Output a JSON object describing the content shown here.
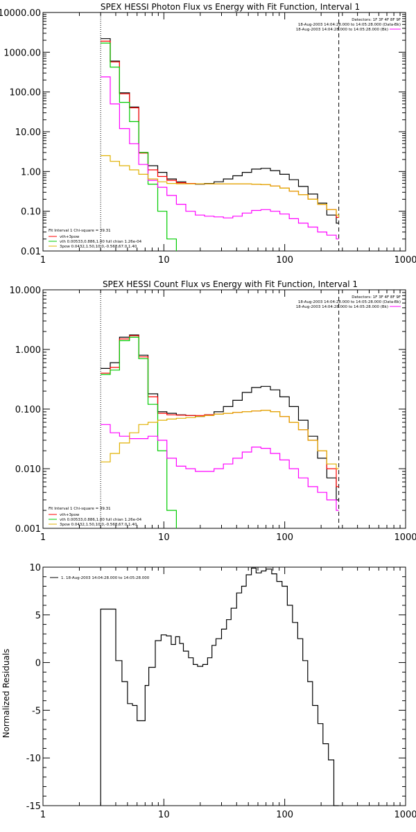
{
  "chart_data": [
    {
      "type": "line",
      "title": "SPEX HESSI Photon Flux vs Energy with Fit Function, Interval 1",
      "x_scale": "log",
      "y_scale": "log",
      "xlim": [
        1,
        1000
      ],
      "ylim": [
        0.01,
        10000
      ],
      "x_ticks": [
        "1",
        "10",
        "100",
        "1000"
      ],
      "y_ticks": [
        "0.01",
        "0.10",
        "1.00",
        "10.00",
        "100.00",
        "1000.00",
        "10000.00"
      ],
      "y_tick_values": [
        0.01,
        0.1,
        1,
        10,
        100,
        1000,
        10000
      ],
      "vlines": [
        {
          "x": 3,
          "style": "dotted"
        },
        {
          "x": 280,
          "style": "dashed"
        }
      ],
      "annotations": {
        "detectors": "Detectors: 1F 3F 4F 8F 9F",
        "time_data": "18-Aug-2003 14:04:28.000 to 14:05:28.000 (Data-Bk)",
        "time_bk": "18-Aug-2003 14:04:28.000 to 14:05:28.000 (Bk)",
        "fit_info": "Fit Interval 1    Chi-square = 39.31",
        "legend": [
          "vth+3pow",
          "vth 0.00533,0.886,1.00   full chian 1.26e-04",
          "3pow 0.0432,1.50,10.0,-0.568,67.0,1.40"
        ]
      },
      "series": [
        {
          "color": "#000000",
          "x": [
            3.0,
            3.6,
            4.3,
            5.2,
            6.2,
            7.4,
            8.9,
            10.6,
            12.7,
            15.2,
            18.2,
            21.7,
            26.0,
            31.1,
            37.2,
            44.5,
            53.2,
            63.6,
            76.1,
            91.1,
            109,
            130,
            156,
            187,
            223,
            267,
            280
          ],
          "y": [
            2200,
            600,
            95,
            42,
            3.0,
            1.4,
            0.95,
            0.65,
            0.55,
            0.5,
            0.48,
            0.5,
            0.55,
            0.65,
            0.78,
            0.95,
            1.15,
            1.2,
            1.05,
            0.85,
            0.62,
            0.42,
            0.27,
            0.16,
            0.08,
            0.05,
            0.05
          ]
        },
        {
          "color": "#ff0000",
          "x": [
            3.0,
            3.6,
            4.3,
            5.2,
            6.2,
            7.4,
            8.9,
            10.6,
            12.7,
            15.2,
            18.2,
            21.7,
            26.0,
            31.1,
            37.2,
            44.5,
            53.2,
            63.6,
            76.1,
            91.1,
            109,
            130,
            156,
            187,
            223,
            267,
            280
          ],
          "y": [
            1900,
            570,
            90,
            40,
            2.9,
            1.1,
            0.75,
            0.6,
            0.52,
            0.5,
            0.49,
            0.49,
            0.49,
            0.49,
            0.49,
            0.49,
            0.48,
            0.47,
            0.43,
            0.38,
            0.32,
            0.26,
            0.2,
            0.15,
            0.11,
            0.07,
            0.07
          ]
        },
        {
          "color": "#00cc00",
          "x": [
            3.0,
            3.6,
            4.3,
            5.2,
            6.2,
            7.4,
            8.9,
            10.6,
            12.7
          ],
          "y": [
            1700,
            420,
            55,
            18,
            3.0,
            0.48,
            0.1,
            0.02,
            0.01
          ]
        },
        {
          "color": "#ff00ff",
          "x": [
            3.0,
            3.6,
            4.3,
            5.2,
            6.2,
            7.4,
            8.9,
            10.6,
            12.7,
            15.2,
            18.2,
            21.7,
            26.0,
            31.1,
            37.2,
            44.5,
            53.2,
            63.6,
            76.1,
            91.1,
            109,
            130,
            156,
            187,
            223,
            267,
            280
          ],
          "y": [
            240,
            50,
            12,
            5,
            1.5,
            0.6,
            0.4,
            0.25,
            0.15,
            0.1,
            0.08,
            0.075,
            0.072,
            0.068,
            0.075,
            0.09,
            0.105,
            0.11,
            0.1,
            0.085,
            0.065,
            0.05,
            0.04,
            0.03,
            0.025,
            0.02,
            0.02
          ]
        },
        {
          "color": "#e0b000",
          "x": [
            3.0,
            3.6,
            4.3,
            5.2,
            6.2,
            7.4,
            8.9,
            10.6,
            12.7,
            15.2,
            18.2,
            21.7,
            26.0,
            31.1,
            37.2,
            44.5,
            53.2,
            63.6,
            76.1,
            91.1,
            109,
            130,
            156,
            187,
            223,
            267,
            280
          ],
          "y": [
            2.5,
            1.8,
            1.4,
            1.1,
            0.85,
            0.65,
            0.55,
            0.5,
            0.49,
            0.49,
            0.49,
            0.49,
            0.49,
            0.49,
            0.49,
            0.49,
            0.48,
            0.47,
            0.43,
            0.38,
            0.32,
            0.26,
            0.2,
            0.15,
            0.11,
            0.08,
            0.07
          ]
        }
      ]
    },
    {
      "type": "line",
      "title": "SPEX HESSI Count Flux vs Energy with Fit Function, Interval 1",
      "x_scale": "log",
      "y_scale": "log",
      "xlim": [
        1,
        1000
      ],
      "ylim": [
        0.001,
        10
      ],
      "x_ticks": [
        "1",
        "10",
        "100",
        "1000"
      ],
      "y_ticks": [
        "0.001",
        "0.010",
        "0.100",
        "1.000",
        "10.000"
      ],
      "y_tick_values": [
        0.001,
        0.01,
        0.1,
        1,
        10
      ],
      "vlines": [
        {
          "x": 3,
          "style": "dotted"
        },
        {
          "x": 280,
          "style": "dashed"
        }
      ],
      "annotations": {
        "detectors": "Detectors: 1F 3F 4F 8F 9F",
        "time_data": "18-Aug-2003 14:04:28.000 to 14:05:28.000 (Data-Bk)",
        "time_bk": "18-Aug-2003 14:04:28.000 to 14:05:28.000 (Bk)",
        "fit_info": "Fit Interval 1    Chi-square = 39.31",
        "legend": [
          "vth+3pow",
          "vth 0.00533,0.886,1.00   full chian 1.26e-04",
          "3pow 0.0432,1.50,10.0,-0.568,67.0,1.40"
        ]
      },
      "series": [
        {
          "color": "#000000",
          "x": [
            3.0,
            3.6,
            4.3,
            5.2,
            6.2,
            7.4,
            8.9,
            10.6,
            12.7,
            15.2,
            18.2,
            21.7,
            26.0,
            31.1,
            37.2,
            44.5,
            53.2,
            63.6,
            76.1,
            91.1,
            109,
            130,
            156,
            187,
            223,
            267,
            280
          ],
          "y": [
            0.48,
            0.6,
            1.6,
            1.75,
            0.8,
            0.18,
            0.09,
            0.085,
            0.08,
            0.078,
            0.075,
            0.08,
            0.09,
            0.11,
            0.14,
            0.19,
            0.23,
            0.24,
            0.21,
            0.16,
            0.11,
            0.065,
            0.035,
            0.015,
            0.007,
            0.003,
            0.003
          ]
        },
        {
          "color": "#ff0000",
          "x": [
            3.0,
            3.6,
            4.3,
            5.2,
            6.2,
            7.4,
            8.9,
            10.6,
            12.7,
            15.2,
            18.2,
            21.7,
            26.0,
            31.1,
            37.2,
            44.5,
            53.2,
            63.6,
            76.1,
            91.1,
            109,
            130,
            156,
            187,
            223,
            267,
            280
          ],
          "y": [
            0.4,
            0.5,
            1.5,
            1.7,
            0.75,
            0.16,
            0.085,
            0.08,
            0.079,
            0.078,
            0.078,
            0.08,
            0.082,
            0.085,
            0.088,
            0.09,
            0.093,
            0.095,
            0.09,
            0.075,
            0.06,
            0.045,
            0.03,
            0.02,
            0.01,
            0.005,
            0.005
          ]
        },
        {
          "color": "#00cc00",
          "x": [
            3.0,
            3.6,
            4.3,
            5.2,
            6.2,
            7.4,
            8.9,
            10.6,
            12.7
          ],
          "y": [
            0.38,
            0.45,
            1.4,
            1.6,
            0.7,
            0.12,
            0.02,
            0.002,
            0.001
          ]
        },
        {
          "color": "#ff00ff",
          "x": [
            3.0,
            3.6,
            4.3,
            5.2,
            6.2,
            7.4,
            8.9,
            10.6,
            12.7,
            15.2,
            18.2,
            21.7,
            26.0,
            31.1,
            37.2,
            44.5,
            53.2,
            63.6,
            76.1,
            91.1,
            109,
            130,
            156,
            187,
            223,
            267,
            280
          ],
          "y": [
            0.055,
            0.04,
            0.035,
            0.032,
            0.032,
            0.035,
            0.03,
            0.015,
            0.011,
            0.01,
            0.009,
            0.009,
            0.01,
            0.012,
            0.015,
            0.019,
            0.023,
            0.022,
            0.018,
            0.014,
            0.01,
            0.007,
            0.005,
            0.004,
            0.003,
            0.002,
            0.002
          ]
        },
        {
          "color": "#e0b000",
          "x": [
            3.0,
            3.6,
            4.3,
            5.2,
            6.2,
            7.4,
            8.9,
            10.6,
            12.7,
            15.2,
            18.2,
            21.7,
            26.0,
            31.1,
            37.2,
            44.5,
            53.2,
            63.6,
            76.1,
            91.1,
            109,
            130,
            156,
            187,
            223,
            267,
            280
          ],
          "y": [
            0.013,
            0.018,
            0.027,
            0.04,
            0.055,
            0.06,
            0.065,
            0.068,
            0.07,
            0.072,
            0.075,
            0.078,
            0.082,
            0.085,
            0.088,
            0.09,
            0.093,
            0.095,
            0.09,
            0.075,
            0.06,
            0.045,
            0.03,
            0.02,
            0.012,
            0.01,
            0.01
          ]
        }
      ]
    },
    {
      "type": "line",
      "title": "",
      "ylabel": "Normalized Residuals",
      "x_scale": "log",
      "y_scale": "linear",
      "xlim": [
        1,
        1000
      ],
      "ylim": [
        -15,
        10
      ],
      "x_ticks": [
        "1",
        "10",
        "100",
        "1000"
      ],
      "y_ticks": [
        "-15",
        "-10",
        "-5",
        "0",
        "5",
        "10"
      ],
      "y_tick_values": [
        -15,
        -10,
        -5,
        0,
        5,
        10
      ],
      "legend": [
        "1. 18-Aug-2003 14:04:28.000 to 14:05:28.000"
      ],
      "series": [
        {
          "color": "#000000",
          "x": [
            3.0,
            3.3,
            4.0,
            4.5,
            5.0,
            5.5,
            6.0,
            7.0,
            7.5,
            8.5,
            9.5,
            10.5,
            11.5,
            12.5,
            13.5,
            14.5,
            16.0,
            17.5,
            19.0,
            21.0,
            23.0,
            25.0,
            27.0,
            30.0,
            33.0,
            36.0,
            40.0,
            44.0,
            48.0,
            53.0,
            58.0,
            64.0,
            70.0,
            78.0,
            86.0,
            95.0,
            105.0,
            116.0,
            128.0,
            141.0,
            155.0,
            170.0,
            188.0,
            207.0,
            230.0,
            255.0,
            280.0
          ],
          "y": [
            5.6,
            5.6,
            0.2,
            -2.0,
            -4.3,
            -4.5,
            -6.1,
            -2.4,
            -0.5,
            2.3,
            2.9,
            2.8,
            1.9,
            2.7,
            2.0,
            1.2,
            0.5,
            -0.2,
            -0.4,
            -0.2,
            0.5,
            1.8,
            2.5,
            3.5,
            4.5,
            5.7,
            7.3,
            8.0,
            9.2,
            9.9,
            9.4,
            9.6,
            9.8,
            9.3,
            8.5,
            8.0,
            6.0,
            4.2,
            2.5,
            0.2,
            -2.0,
            -4.5,
            -6.4,
            -8.5,
            -10.2,
            -15.0,
            -15.0
          ]
        }
      ]
    }
  ]
}
